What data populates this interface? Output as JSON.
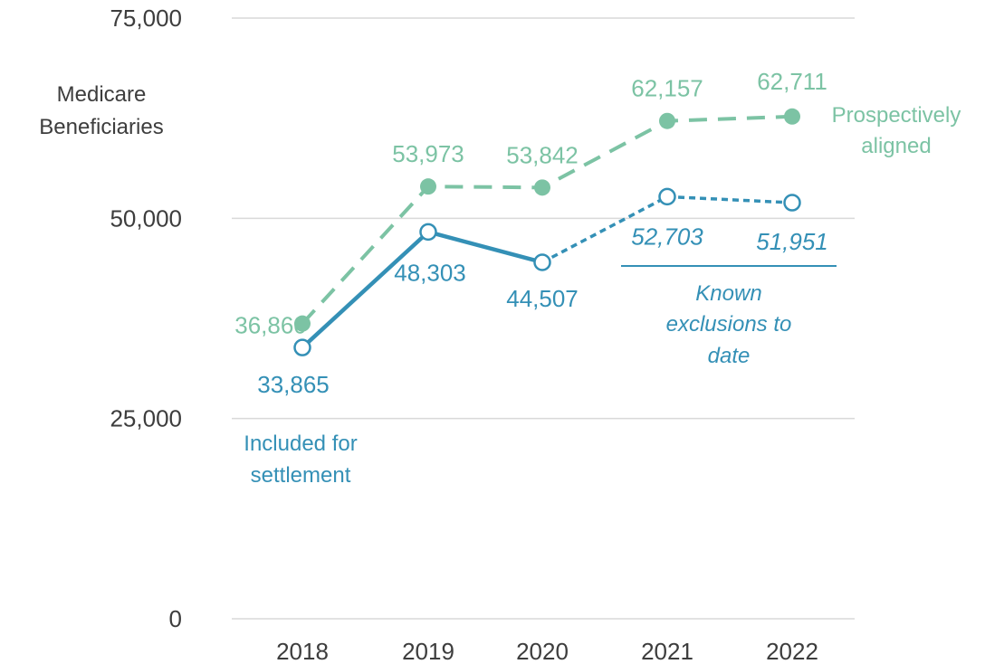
{
  "chart_data": {
    "type": "line",
    "ylabel_lines": [
      "Medicare",
      "Beneficiaries"
    ],
    "categories": [
      "2018",
      "2019",
      "2020",
      "2021",
      "2022"
    ],
    "yticks": [
      "0",
      "25,000",
      "50,000",
      "75,000"
    ],
    "ytick_values": [
      0,
      25000,
      50000,
      75000
    ],
    "ylim": [
      0,
      75000
    ],
    "grid": true,
    "series": [
      {
        "label_lines": [
          "Prospectively",
          "aligned"
        ],
        "color": "#7cc3a4",
        "style": "dashed",
        "markers": "filled",
        "values": [
          36860,
          53973,
          53842,
          62157,
          62711
        ],
        "data_labels": [
          "36,860",
          "53,973",
          "53,842",
          "62,157",
          "62,711"
        ]
      },
      {
        "label_lines": [
          "Included for",
          "settlement"
        ],
        "color": "#3490b6",
        "style": "solid through 2020, dotted after",
        "markers": "open",
        "values": [
          33865,
          48303,
          44507,
          52703,
          51951
        ],
        "data_labels": [
          "33,865",
          "48,303",
          "44,507",
          "52,703",
          "51,951"
        ]
      }
    ],
    "annotation_lines": [
      "Known",
      "exclusions to",
      "date"
    ]
  }
}
